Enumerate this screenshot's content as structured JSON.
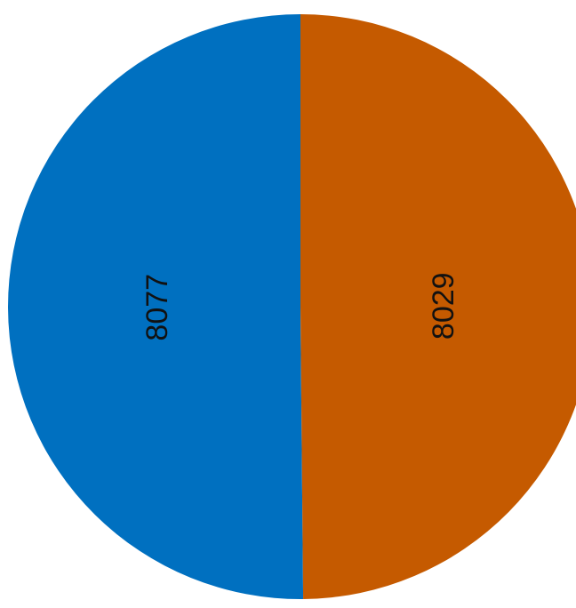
{
  "chart_data": {
    "type": "pie",
    "title": "",
    "slices": [
      {
        "label": "8077",
        "value": 8077,
        "color": "#0070C0"
      },
      {
        "label": "8029",
        "value": 8029,
        "color": "#C55A00"
      }
    ],
    "start_angle": "top",
    "direction": "counter-clockwise",
    "data_labels": "inside, rotated",
    "legend": "none"
  }
}
